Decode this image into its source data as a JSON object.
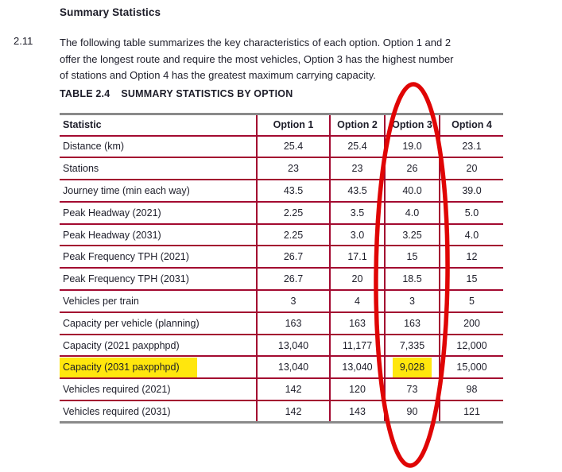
{
  "page": {
    "heading": "Summary Statistics",
    "para_number": "2.11",
    "paragraph_lines": [
      "The following table summarizes the key characteristics of each option. Option 1 and 2",
      "offer the longest route and require the most vehicles, Option 3 has the highest number",
      "of stations and Option 4 has the greatest maximum carrying capacity."
    ],
    "table_label": "TABLE 2.4",
    "table_title": "SUMMARY STATISTICS BY OPTION"
  },
  "table": {
    "columns": [
      "Statistic",
      "Option 1",
      "Option 2",
      "Option 3",
      "Option 4"
    ],
    "rows": [
      {
        "label": "Distance (km)",
        "values": [
          "25.4",
          "25.4",
          "19.0",
          "23.1"
        ]
      },
      {
        "label": "Stations",
        "values": [
          "23",
          "23",
          "26",
          "20"
        ]
      },
      {
        "label": "Journey time (min each way)",
        "values": [
          "43.5",
          "43.5",
          "40.0",
          "39.0"
        ]
      },
      {
        "label": "Peak Headway (2021)",
        "values": [
          "2.25",
          "3.5",
          "4.0",
          "5.0"
        ]
      },
      {
        "label": "Peak Headway (2031)",
        "values": [
          "2.25",
          "3.0",
          "3.25",
          "4.0"
        ]
      },
      {
        "label": "Peak Frequency TPH (2021)",
        "values": [
          "26.7",
          "17.1",
          "15",
          "12"
        ]
      },
      {
        "label": "Peak Frequency TPH (2031)",
        "values": [
          "26.7",
          "20",
          "18.5",
          "15"
        ]
      },
      {
        "label": "Vehicles per train",
        "values": [
          "3",
          "4",
          "3",
          "5"
        ]
      },
      {
        "label": "Capacity per vehicle (planning)",
        "values": [
          "163",
          "163",
          "163",
          "200"
        ]
      },
      {
        "label": "Capacity (2021 paxpphpd)",
        "values": [
          "13,040",
          "11,177",
          "7,335",
          "12,000"
        ]
      },
      {
        "label": "Capacity (2031 paxpphpd)",
        "values": [
          "13,040",
          "13,040",
          "9,028",
          "15,000"
        ],
        "highlight_label": true,
        "highlight_col": 2
      },
      {
        "label": "Vehicles required (2021)",
        "values": [
          "142",
          "120",
          "73",
          "98"
        ]
      },
      {
        "label": "Vehicles required (2031)",
        "values": [
          "142",
          "143",
          "90",
          "121"
        ]
      }
    ]
  },
  "annotations": {
    "circled_column": "Option 3",
    "circle_color": "#e00505",
    "highlight_color": "#ffe60d",
    "highlighted_row": "Capacity (2031 paxpphpd)",
    "highlighted_value": "9,028"
  },
  "theme": {
    "border_red": "#a30a30",
    "rule_gray": "#8a8a8a",
    "text_color": "#1d1d29"
  }
}
